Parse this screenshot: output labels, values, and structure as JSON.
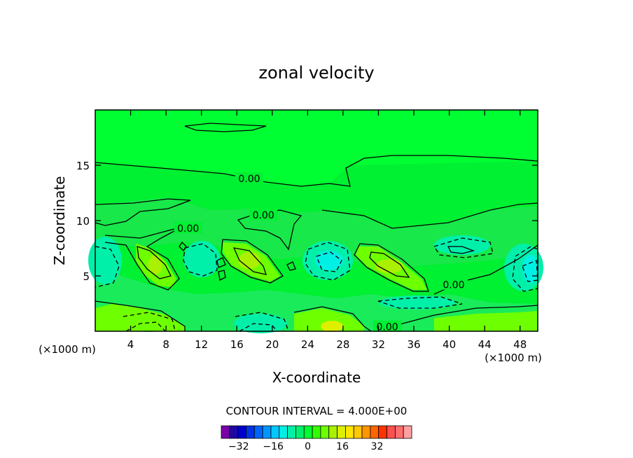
{
  "chart_data": {
    "type": "contour",
    "title": "zonal velocity",
    "xlabel": "X-coordinate",
    "ylabel": "Z-coordinate",
    "x_unit_label": "(×1000 m)",
    "x_unit_label_right": "(×1000 m)",
    "xlim": [
      0,
      50
    ],
    "ylim": [
      0,
      20
    ],
    "x_ticks": [
      4,
      8,
      12,
      16,
      20,
      24,
      28,
      32,
      36,
      40,
      44,
      48
    ],
    "x_tick_labels": [
      "4",
      "8",
      "12",
      "16",
      "20",
      "24",
      "28",
      "32",
      "36",
      "40",
      "44",
      "48"
    ],
    "y_ticks": [
      5,
      10,
      15
    ],
    "y_tick_labels": [
      "5",
      "10",
      "15"
    ],
    "contour_labels": [
      {
        "text": "0.00",
        "x": 17.4,
        "y": 13.8
      },
      {
        "text": "0.00",
        "x": 19.0,
        "y": 10.5
      },
      {
        "text": "0.00",
        "x": 10.5,
        "y": 9.3
      },
      {
        "text": "0.00",
        "x": 40.5,
        "y": 4.2
      },
      {
        "text": "0.00",
        "x": 33.0,
        "y": 0.4
      }
    ],
    "contour_interval_text": "CONTOUR INTERVAL = 4.000E+00",
    "colorbar": {
      "colors": [
        "#7a00a8",
        "#1e0aa0",
        "#0000cd",
        "#0032e6",
        "#0064ff",
        "#0096ff",
        "#00c8ff",
        "#00f0e6",
        "#00f0aa",
        "#00f06e",
        "#00ff32",
        "#32ff00",
        "#6eff00",
        "#aaf000",
        "#dcf000",
        "#ffe600",
        "#ffc800",
        "#ff9600",
        "#ff6400",
        "#ff3200",
        "#ff5050",
        "#ff6e6e",
        "#ffa0a0"
      ],
      "tick_labels": [
        "−32",
        "−16",
        "0",
        "16",
        "32"
      ],
      "tick_values": [
        -32,
        -16,
        0,
        16,
        32
      ],
      "range": [
        -40,
        48
      ]
    }
  }
}
